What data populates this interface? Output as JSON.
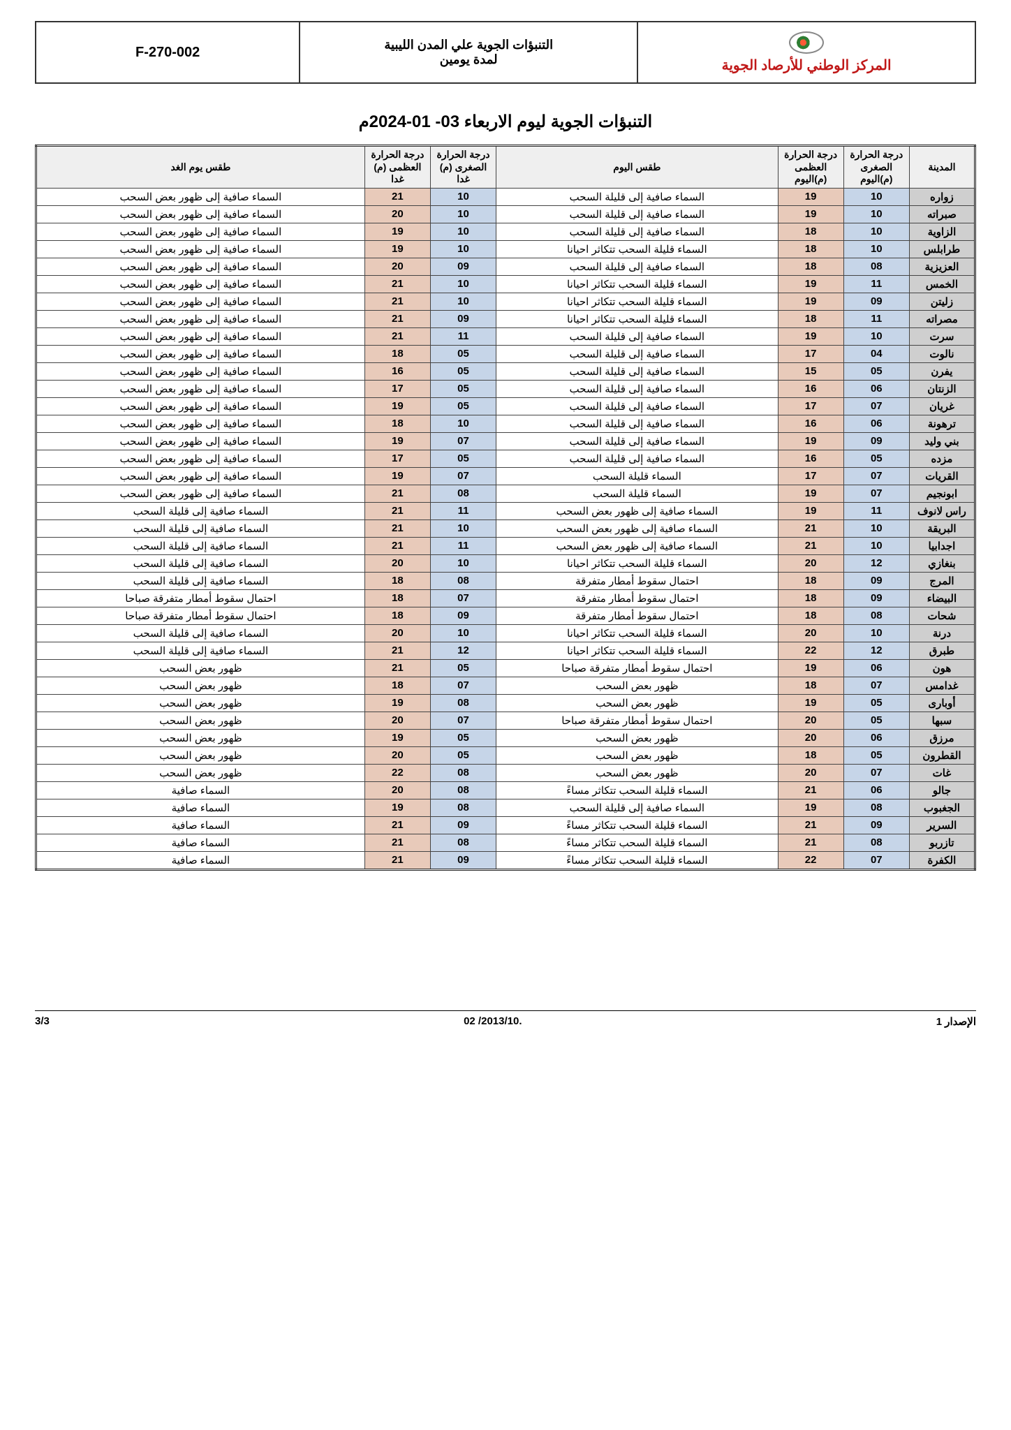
{
  "header": {
    "code": "F-270-002",
    "mid_line1": "التنبؤات الجوية علي المدن الليبية",
    "mid_line2": "لمدة يومين",
    "org": "المركز الوطني للأرصاد الجوية"
  },
  "title": "التنبؤات الجوية ليوم الاربعاء  03- 01-2024م",
  "columns": {
    "city": "المدينة",
    "lo_today": "درجة الحرارة الصغرى (م)اليوم",
    "hi_today": "درجة الحرارة العظمى (م)اليوم",
    "wx_today": "طقس اليوم",
    "lo_tomorrow": "درجة الحرارة الصغرى (م) غدا",
    "hi_tomorrow": "درجة الحرارة العظمى (م) غدا",
    "wx_tomorrow": "طقس يوم الغد"
  },
  "colors": {
    "city_bg": "#cfcfcf",
    "low_bg": "#c6d5e8",
    "high_bg": "#e8caba",
    "header_bg": "#efefef",
    "org_color": "#c01818",
    "border": "#444444",
    "outer_border": "#222222"
  },
  "rows": [
    {
      "city": "زواره",
      "lo_t": "10",
      "hi_t": "19",
      "wx_t": "السماء صافية إلى قليلة السحب",
      "lo_m": "10",
      "hi_m": "21",
      "wx_m": "السماء صافية إلى ظهور بعض السحب"
    },
    {
      "city": "صبراته",
      "lo_t": "10",
      "hi_t": "19",
      "wx_t": "السماء صافية إلى قليلة السحب",
      "lo_m": "10",
      "hi_m": "20",
      "wx_m": "السماء صافية إلى ظهور بعض السحب"
    },
    {
      "city": "الزاوية",
      "lo_t": "10",
      "hi_t": "18",
      "wx_t": "السماء صافية إلى قليلة السحب",
      "lo_m": "10",
      "hi_m": "19",
      "wx_m": "السماء صافية إلى ظهور بعض السحب"
    },
    {
      "city": "طرابلس",
      "lo_t": "10",
      "hi_t": "18",
      "wx_t": "السماء قليلة السحب تتكاثر  احيانا",
      "lo_m": "10",
      "hi_m": "19",
      "wx_m": "السماء صافية إلى ظهور بعض السحب"
    },
    {
      "city": "العزيزية",
      "lo_t": "08",
      "hi_t": "18",
      "wx_t": "السماء صافية إلى قليلة السحب",
      "lo_m": "09",
      "hi_m": "20",
      "wx_m": "السماء صافية إلى ظهور بعض السحب"
    },
    {
      "city": "الخمس",
      "lo_t": "11",
      "hi_t": "19",
      "wx_t": "السماء قليلة السحب تتكاثر  احيانا",
      "lo_m": "10",
      "hi_m": "21",
      "wx_m": "السماء صافية إلى ظهور بعض السحب"
    },
    {
      "city": "زليتن",
      "lo_t": "09",
      "hi_t": "19",
      "wx_t": "السماء قليلة السحب تتكاثر  احيانا",
      "lo_m": "10",
      "hi_m": "21",
      "wx_m": "السماء صافية إلى ظهور بعض السحب"
    },
    {
      "city": "مصراته",
      "lo_t": "11",
      "hi_t": "18",
      "wx_t": "السماء قليلة السحب تتكاثر  احيانا",
      "lo_m": "09",
      "hi_m": "21",
      "wx_m": "السماء صافية إلى ظهور بعض السحب"
    },
    {
      "city": "سرت",
      "lo_t": "10",
      "hi_t": "19",
      "wx_t": "السماء صافية إلى قليلة السحب",
      "lo_m": "11",
      "hi_m": "21",
      "wx_m": "السماء صافية إلى ظهور بعض السحب"
    },
    {
      "city": "نالوت",
      "lo_t": "04",
      "hi_t": "17",
      "wx_t": "السماء صافية إلى قليلة السحب",
      "lo_m": "05",
      "hi_m": "18",
      "wx_m": "السماء صافية إلى ظهور بعض السحب"
    },
    {
      "city": "يفرن",
      "lo_t": "05",
      "hi_t": "15",
      "wx_t": "السماء صافية إلى قليلة السحب",
      "lo_m": "05",
      "hi_m": "16",
      "wx_m": "السماء صافية إلى ظهور بعض السحب"
    },
    {
      "city": "الزنتان",
      "lo_t": "06",
      "hi_t": "16",
      "wx_t": "السماء صافية إلى قليلة السحب",
      "lo_m": "05",
      "hi_m": "17",
      "wx_m": "السماء صافية إلى ظهور بعض السحب"
    },
    {
      "city": "غريان",
      "lo_t": "07",
      "hi_t": "17",
      "wx_t": "السماء صافية إلى قليلة السحب",
      "lo_m": "05",
      "hi_m": "19",
      "wx_m": "السماء صافية إلى ظهور بعض السحب"
    },
    {
      "city": "ترهونة",
      "lo_t": "06",
      "hi_t": "16",
      "wx_t": "السماء صافية إلى قليلة السحب",
      "lo_m": "10",
      "hi_m": "18",
      "wx_m": "السماء صافية إلى ظهور بعض السحب"
    },
    {
      "city": "بني وليد",
      "lo_t": "09",
      "hi_t": "19",
      "wx_t": "السماء صافية إلى قليلة السحب",
      "lo_m": "07",
      "hi_m": "19",
      "wx_m": "السماء صافية إلى ظهور بعض السحب"
    },
    {
      "city": "مزده",
      "lo_t": "05",
      "hi_t": "16",
      "wx_t": "السماء صافية إلى قليلة السحب",
      "lo_m": "05",
      "hi_m": "17",
      "wx_m": "السماء صافية إلى ظهور بعض السحب"
    },
    {
      "city": "القريات",
      "lo_t": "07",
      "hi_t": "17",
      "wx_t": "السماء قليلة السحب",
      "lo_m": "07",
      "hi_m": "19",
      "wx_m": "السماء صافية إلى ظهور بعض السحب"
    },
    {
      "city": "ابونجيم",
      "lo_t": "07",
      "hi_t": "19",
      "wx_t": "السماء قليلة السحب",
      "lo_m": "08",
      "hi_m": "21",
      "wx_m": "السماء صافية إلى ظهور بعض السحب"
    },
    {
      "city": "راس لانوف",
      "lo_t": "11",
      "hi_t": "19",
      "wx_t": "السماء صافية إلى ظهور بعض السحب",
      "lo_m": "11",
      "hi_m": "21",
      "wx_m": "السماء صافية إلى قليلة السحب"
    },
    {
      "city": "البريقة",
      "lo_t": "10",
      "hi_t": "21",
      "wx_t": "السماء صافية إلى ظهور بعض السحب",
      "lo_m": "10",
      "hi_m": "21",
      "wx_m": "السماء صافية إلى قليلة السحب"
    },
    {
      "city": "اجدابيا",
      "lo_t": "10",
      "hi_t": "21",
      "wx_t": "السماء صافية إلى ظهور بعض السحب",
      "lo_m": "11",
      "hi_m": "21",
      "wx_m": "السماء صافية إلى قليلة السحب"
    },
    {
      "city": "بنغازي",
      "lo_t": "12",
      "hi_t": "20",
      "wx_t": "السماء قليلة السحب تتكاثر  احيانا",
      "lo_m": "10",
      "hi_m": "20",
      "wx_m": "السماء صافية إلى قليلة السحب"
    },
    {
      "city": "المرج",
      "lo_t": "09",
      "hi_t": "18",
      "wx_t": "احتمال سقوط أمطار متفرقة",
      "lo_m": "08",
      "hi_m": "18",
      "wx_m": "السماء صافية إلى قليلة السحب"
    },
    {
      "city": "البيضاء",
      "lo_t": "09",
      "hi_t": "18",
      "wx_t": "احتمال سقوط أمطار متفرقة",
      "lo_m": "07",
      "hi_m": "18",
      "wx_m": "احتمال سقوط أمطار متفرقة صباحا"
    },
    {
      "city": "شحات",
      "lo_t": "08",
      "hi_t": "18",
      "wx_t": "احتمال سقوط أمطار متفرقة",
      "lo_m": "09",
      "hi_m": "18",
      "wx_m": "احتمال سقوط أمطار متفرقة صباحا"
    },
    {
      "city": "درنة",
      "lo_t": "10",
      "hi_t": "20",
      "wx_t": "السماء قليلة السحب تتكاثر  احيانا",
      "lo_m": "10",
      "hi_m": "20",
      "wx_m": "السماء صافية إلى قليلة السحب"
    },
    {
      "city": "طبرق",
      "lo_t": "12",
      "hi_t": "22",
      "wx_t": "السماء قليلة السحب تتكاثر  احيانا",
      "lo_m": "12",
      "hi_m": "21",
      "wx_m": "السماء صافية إلى قليلة السحب"
    },
    {
      "city": "هون",
      "lo_t": "06",
      "hi_t": "19",
      "wx_t": "احتمال سقوط أمطار متفرقة صباحا",
      "lo_m": "05",
      "hi_m": "21",
      "wx_m": "ظهور بعض السحب"
    },
    {
      "city": "غدامس",
      "lo_t": "07",
      "hi_t": "18",
      "wx_t": "ظهور بعض السحب",
      "lo_m": "07",
      "hi_m": "18",
      "wx_m": "ظهور بعض السحب"
    },
    {
      "city": "أوبارى",
      "lo_t": "05",
      "hi_t": "19",
      "wx_t": "ظهور بعض السحب",
      "lo_m": "08",
      "hi_m": "19",
      "wx_m": "ظهور بعض السحب"
    },
    {
      "city": "سبها",
      "lo_t": "05",
      "hi_t": "20",
      "wx_t": "احتمال سقوط أمطار متفرقة صباحا",
      "lo_m": "07",
      "hi_m": "20",
      "wx_m": "ظهور بعض السحب"
    },
    {
      "city": "مرزق",
      "lo_t": "06",
      "hi_t": "20",
      "wx_t": "ظهور بعض السحب",
      "lo_m": "05",
      "hi_m": "19",
      "wx_m": "ظهور بعض السحب"
    },
    {
      "city": "القطرون",
      "lo_t": "05",
      "hi_t": "18",
      "wx_t": "ظهور بعض السحب",
      "lo_m": "05",
      "hi_m": "20",
      "wx_m": "ظهور بعض السحب"
    },
    {
      "city": "غات",
      "lo_t": "07",
      "hi_t": "20",
      "wx_t": "ظهور بعض السحب",
      "lo_m": "08",
      "hi_m": "22",
      "wx_m": "ظهور بعض السحب"
    },
    {
      "city": "جالو",
      "lo_t": "06",
      "hi_t": "21",
      "wx_t": "السماء قليلة السحب تتكاثر  مساءً",
      "lo_m": "08",
      "hi_m": "20",
      "wx_m": "السماء صافية"
    },
    {
      "city": "الجغبوب",
      "lo_t": "08",
      "hi_t": "19",
      "wx_t": "السماء صافية إلى قليلة السحب",
      "lo_m": "08",
      "hi_m": "19",
      "wx_m": "السماء صافية"
    },
    {
      "city": "السرير",
      "lo_t": "09",
      "hi_t": "21",
      "wx_t": "السماء قليلة السحب تتكاثر  مساءً",
      "lo_m": "09",
      "hi_m": "21",
      "wx_m": "السماء صافية"
    },
    {
      "city": "تازربو",
      "lo_t": "08",
      "hi_t": "21",
      "wx_t": "السماء قليلة السحب تتكاثر  مساءً",
      "lo_m": "08",
      "hi_m": "21",
      "wx_m": "السماء صافية"
    },
    {
      "city": "الكفرة",
      "lo_t": "07",
      "hi_t": "22",
      "wx_t": "السماء قليلة السحب تتكاثر  مساءً",
      "lo_m": "09",
      "hi_m": "21",
      "wx_m": "السماء صافية"
    }
  ],
  "footer": {
    "issue": "الإصدار 1",
    "date": ".2013/10/ 02",
    "page": "3/3"
  }
}
